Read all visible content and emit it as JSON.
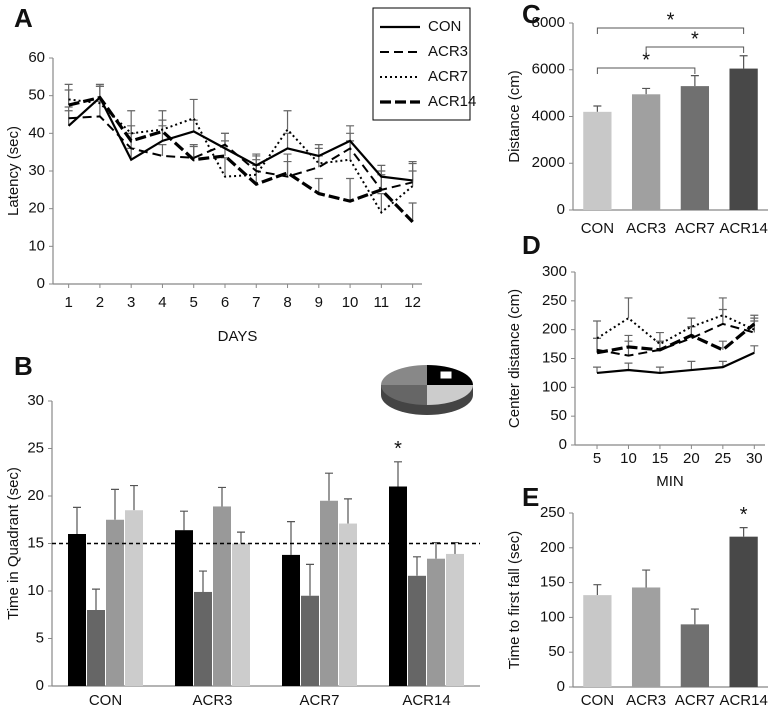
{
  "chart_data": [
    {
      "panel": "A",
      "type": "line",
      "x_label": "DAYS",
      "y_label": "Latency (sec)",
      "x": [
        1,
        2,
        3,
        4,
        5,
        6,
        7,
        8,
        9,
        10,
        11,
        12
      ],
      "xlim": [
        0.5,
        12.3
      ],
      "xticks": [
        1,
        2,
        3,
        4,
        5,
        6,
        7,
        8,
        9,
        10,
        11,
        12
      ],
      "ylim": [
        0,
        60
      ],
      "yticks": [
        0,
        10,
        20,
        30,
        40,
        50,
        60
      ],
      "legend": "upper-right",
      "series": [
        {
          "name": "CON",
          "color": "#000000",
          "dash": "solid",
          "values": [
            42,
            49.5,
            33,
            38,
            40.5,
            36,
            31.5,
            36,
            34,
            38,
            28.5,
            27.5
          ],
          "errors": [
            4,
            3,
            3,
            4,
            3,
            4,
            3,
            4,
            3,
            4,
            3,
            5
          ]
        },
        {
          "name": "ACR3",
          "color": "#000000",
          "dash": "dashed",
          "values": [
            44,
            44.5,
            36,
            34,
            33.5,
            37,
            30,
            28.5,
            31,
            36,
            25,
            27
          ],
          "errors": [
            3,
            4,
            4,
            3,
            3,
            3,
            3,
            4,
            3,
            4,
            4,
            3
          ]
        },
        {
          "name": "ACR7",
          "color": "#000000",
          "dash": "dotted",
          "values": [
            49,
            48,
            40,
            41,
            44,
            28.5,
            29,
            41,
            32,
            33,
            19,
            26
          ],
          "errors": [
            4,
            5,
            6,
            5,
            5,
            5,
            5,
            5,
            4,
            5,
            5,
            6
          ]
        },
        {
          "name": "ACR14",
          "color": "#000000",
          "dash": "heavy-dashed",
          "values": [
            47.5,
            49.5,
            38,
            40.5,
            33,
            34,
            26.5,
            29.5,
            24,
            22,
            25,
            16.5
          ],
          "errors": [
            4,
            3,
            4,
            3,
            4,
            4,
            5,
            5,
            4,
            6,
            5,
            5
          ]
        }
      ]
    },
    {
      "panel": "B",
      "type": "grouped-bar",
      "y_label": "Time in Quadrant (sec)",
      "categories": [
        "CON",
        "ACR3",
        "ACR7",
        "ACR14"
      ],
      "ylim": [
        0,
        30
      ],
      "yticks": [
        0,
        5,
        10,
        15,
        20,
        25,
        30
      ],
      "reference_line": 15,
      "series": [
        {
          "color": "#000000",
          "values": [
            16,
            16.4,
            13.8,
            21
          ],
          "errors": [
            2.8,
            2,
            3.5,
            2.6
          ]
        },
        {
          "color": "#666666",
          "values": [
            8,
            9.9,
            9.5,
            11.6
          ],
          "errors": [
            2.2,
            2.2,
            3.3,
            2
          ]
        },
        {
          "color": "#999999",
          "values": [
            17.5,
            18.9,
            19.5,
            13.4
          ],
          "errors": [
            3.2,
            2,
            2.9,
            1.7
          ]
        },
        {
          "color": "#cccccc",
          "values": [
            18.5,
            15,
            17.1,
            13.9
          ],
          "errors": [
            2.6,
            1.2,
            2.6,
            1.2
          ]
        }
      ],
      "annotations": [
        {
          "text": "*",
          "category": "ACR14"
        }
      ]
    },
    {
      "panel": "C",
      "type": "bar",
      "y_label": "Distance (cm)",
      "categories": [
        "CON",
        "ACR3",
        "ACR7",
        "ACR14"
      ],
      "values": [
        4200,
        4950,
        5300,
        6050
      ],
      "errors": [
        250,
        250,
        450,
        550
      ],
      "colors": [
        "#c8c8c8",
        "#a0a0a0",
        "#707070",
        "#484848"
      ],
      "ylim": [
        0,
        8000
      ],
      "yticks": [
        0,
        2000,
        4000,
        6000,
        8000
      ],
      "brackets": [
        {
          "text": "*",
          "from": "CON",
          "to": "ACR7"
        },
        {
          "text": "*",
          "from": "ACR3",
          "to": "ACR14"
        },
        {
          "text": "*",
          "from": "CON",
          "to": "ACR14"
        }
      ]
    },
    {
      "panel": "D",
      "type": "line",
      "x_label": "MIN",
      "y_label": "Center distance (cm)",
      "x": [
        5,
        10,
        15,
        20,
        25,
        30
      ],
      "xlim": [
        1.5,
        31.7
      ],
      "xticks": [
        5,
        10,
        15,
        20,
        25,
        30
      ],
      "ylim": [
        0,
        300
      ],
      "yticks": [
        0,
        50,
        100,
        150,
        200,
        250,
        300
      ],
      "series": [
        {
          "color": "#000000",
          "dash": "solid",
          "values": [
            125,
            130,
            125,
            130,
            135,
            160
          ],
          "errors": [
            10,
            12,
            10,
            15,
            10,
            12
          ]
        },
        {
          "color": "#000000",
          "dash": "dashed",
          "values": [
            165,
            155,
            165,
            185,
            210,
            195
          ],
          "errors": [
            20,
            25,
            15,
            20,
            25,
            20
          ]
        },
        {
          "color": "#000000",
          "dash": "dotted",
          "values": [
            185,
            220,
            175,
            205,
            225,
            200
          ],
          "errors": [
            30,
            35,
            20,
            15,
            30,
            20
          ]
        },
        {
          "color": "#000000",
          "dash": "heavy-dashed",
          "values": [
            160,
            170,
            165,
            190,
            165,
            210
          ],
          "errors": [
            25,
            20,
            15,
            15,
            15,
            15
          ]
        }
      ]
    },
    {
      "panel": "E",
      "type": "bar",
      "y_label": "Time to first fall (sec)",
      "categories": [
        "CON",
        "ACR3",
        "ACR7",
        "ACR14"
      ],
      "values": [
        132,
        143,
        90,
        216
      ],
      "errors": [
        15,
        25,
        22,
        13
      ],
      "colors": [
        "#c8c8c8",
        "#a0a0a0",
        "#707070",
        "#484848"
      ],
      "ylim": [
        0,
        250
      ],
      "yticks": [
        0,
        50,
        100,
        150,
        200,
        250
      ],
      "annotations": [
        {
          "text": "*",
          "category": "ACR14"
        }
      ]
    }
  ]
}
